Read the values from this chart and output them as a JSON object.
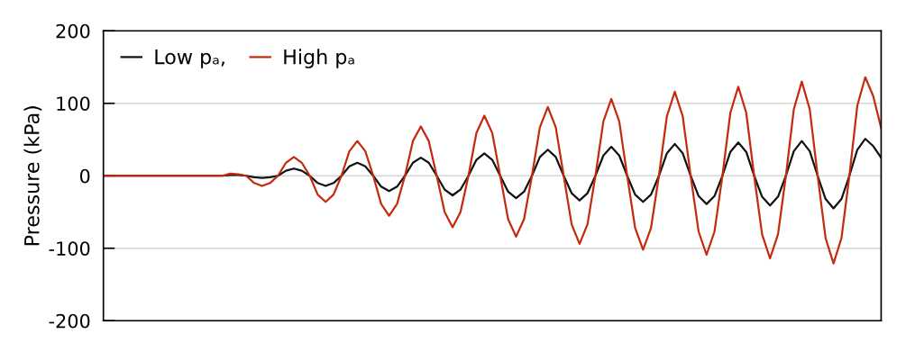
{
  "chart_data": {
    "type": "line",
    "ylabel": "Pressure (kPa)",
    "categories": [
      null,
      null,
      null,
      null,
      null,
      null,
      null,
      null,
      null,
      null,
      null,
      null,
      null,
      null,
      null,
      null,
      null,
      null,
      null,
      null,
      null,
      null,
      null,
      null,
      null,
      null,
      null,
      null,
      null,
      null,
      null,
      null,
      null,
      null,
      null,
      null,
      null,
      null,
      null,
      null,
      null,
      null,
      null,
      null,
      null,
      null,
      null,
      null,
      null,
      null,
      null,
      null,
      null,
      null,
      null,
      null,
      null,
      null,
      null,
      null,
      null,
      null,
      null,
      null,
      null,
      null,
      null,
      null,
      null,
      null,
      null,
      null,
      null,
      null,
      null,
      null,
      null,
      null,
      null,
      null,
      null,
      null,
      null,
      null,
      null,
      null,
      null,
      null,
      null,
      null,
      null,
      null,
      null,
      null,
      null,
      null,
      null,
      null,
      null
    ],
    "series": [
      {
        "name": "Low pₐ,",
        "color": "#111111",
        "values": [
          0,
          0,
          0,
          0,
          0,
          0,
          0,
          0,
          0,
          0,
          0,
          0,
          0,
          0,
          0,
          0,
          1,
          1,
          0,
          -2,
          -3,
          -2,
          0,
          7,
          10,
          7,
          0,
          -10,
          -14,
          -10,
          0,
          13,
          18,
          13,
          0,
          -15,
          -21,
          -15,
          0,
          18,
          25,
          18,
          0,
          -19,
          -27,
          -19,
          0,
          22,
          31,
          22,
          0,
          -22,
          -31,
          -22,
          0,
          26,
          36,
          26,
          0,
          -24,
          -34,
          -24,
          0,
          28,
          40,
          28,
          0,
          -26,
          -36,
          -26,
          0,
          31,
          44,
          31,
          0,
          -28,
          -39,
          -28,
          0,
          33,
          46,
          33,
          0,
          -29,
          -41,
          -29,
          0,
          34,
          48,
          34,
          0,
          -32,
          -45,
          -32,
          0,
          36,
          51,
          41,
          25
        ]
      },
      {
        "name": "High pₐ",
        "color": "#c42a0e",
        "values": [
          0,
          0,
          0,
          0,
          0,
          0,
          0,
          0,
          0,
          0,
          0,
          0,
          0,
          0,
          0,
          0,
          3,
          2,
          0,
          -10,
          -14,
          -10,
          0,
          18,
          26,
          18,
          0,
          -26,
          -36,
          -26,
          0,
          34,
          48,
          34,
          0,
          -39,
          -55,
          -39,
          0,
          48,
          68,
          48,
          0,
          -50,
          -71,
          -50,
          0,
          59,
          83,
          59,
          0,
          -60,
          -84,
          -60,
          0,
          67,
          95,
          67,
          0,
          -67,
          -94,
          -67,
          0,
          75,
          106,
          75,
          0,
          -72,
          -102,
          -72,
          0,
          82,
          116,
          82,
          0,
          -77,
          -109,
          -77,
          0,
          87,
          123,
          87,
          0,
          -81,
          -114,
          -81,
          0,
          92,
          130,
          92,
          0,
          -86,
          -121,
          -86,
          0,
          97,
          136,
          110,
          66
        ]
      }
    ],
    "ylim": [
      -200,
      200
    ],
    "yticks": [
      -200,
      -100,
      0,
      100,
      200
    ],
    "grid": "y",
    "legend": "top left",
    "tick_labels": "y",
    "line_style": "solid",
    "marker": "none"
  }
}
